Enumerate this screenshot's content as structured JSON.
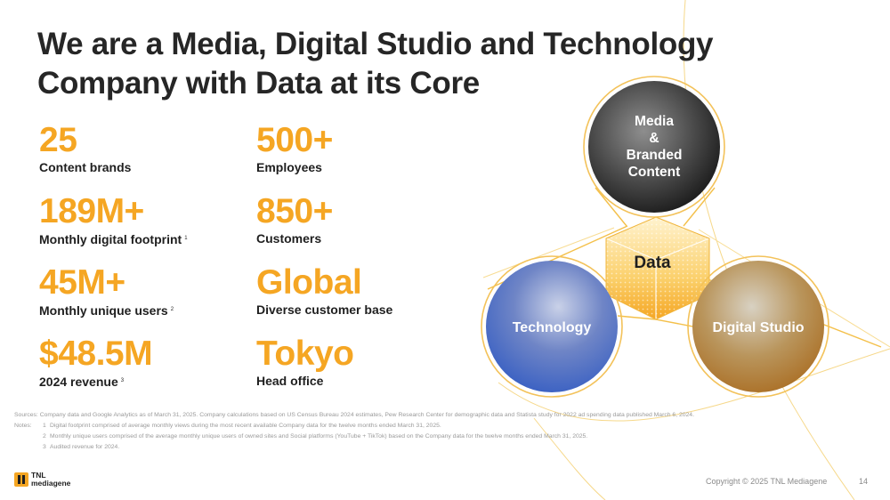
{
  "title": {
    "line1": "We are a Media, Digital Studio and Technology",
    "line2": "Company with Data at its Core"
  },
  "stats": [
    {
      "value": "25",
      "label": "Content brands",
      "note": ""
    },
    {
      "value": "500+",
      "label": "Employees",
      "note": ""
    },
    {
      "value": "189M+",
      "label": "Monthly digital footprint",
      "note": "1"
    },
    {
      "value": "850+",
      "label": "Customers",
      "note": ""
    },
    {
      "value": "45M+",
      "label": "Monthly unique users",
      "note": "2"
    },
    {
      "value": "Global",
      "label": "Diverse customer base",
      "note": ""
    },
    {
      "value": "$48.5M",
      "label": "2024 revenue",
      "note": "3"
    },
    {
      "value": "Tokyo",
      "label": "Head office",
      "note": ""
    }
  ],
  "diagram": {
    "media": {
      "line1": "Media",
      "line2": "&",
      "line3": "Branded",
      "line4": "Content"
    },
    "technology": "Technology",
    "digital_studio": "Digital Studio",
    "data": "Data"
  },
  "footnotes": {
    "sources_key": "Sources:",
    "sources": "Company data and Google Analytics as of March 31, 2025. Company calculations based on US Census Bureau 2024 estimates, Pew Research Center for demographic data and Statista study for 2022 ad spending data published March 6, 2024.",
    "notes_key": "Notes:",
    "note1_num": "1",
    "note1": "Digital footprint comprised of average monthly views during the most recent available Company data for the twelve months ended March 31, 2025.",
    "note2_num": "2",
    "note2": "Monthly unique users comprised of the average monthly unique users of owned sites and Social platforms (YouTube + TikTok) based on the Company data for the twelve months ended March 31, 2025.",
    "note3_num": "3",
    "note3": "Audited revenue for 2024."
  },
  "logo": {
    "line1": "TNL",
    "line2": "mediagene"
  },
  "footer": {
    "copyright": "Copyright © 2025 TNL Mediagene",
    "page": "14"
  },
  "colors": {
    "accent": "#f5a623",
    "title": "#262626",
    "footnote": "#9a9a9a"
  },
  "icons": [
    "tnl-mediagene-logo-icon"
  ]
}
